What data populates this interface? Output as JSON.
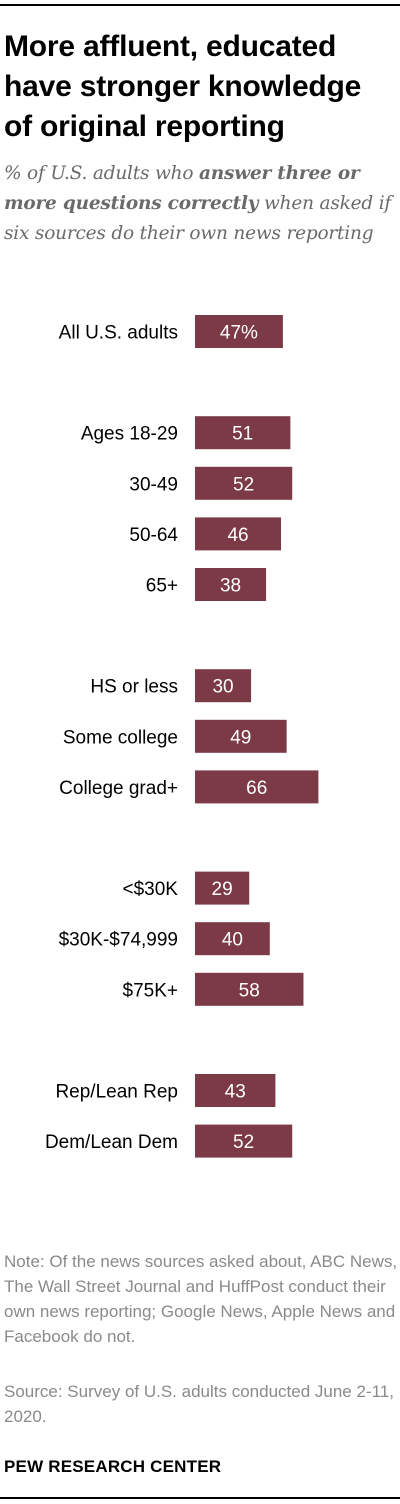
{
  "title": "More affluent, educated have stronger knowledge of original reporting",
  "subtitle": {
    "part1": "% of U.S. adults who ",
    "bold": "answer three or more questions correctly",
    "part2": " when asked if six sources do their own news reporting"
  },
  "note": "Note: Of the news sources asked about, ABC News, The Wall Street Journal and HuffPost conduct their own news reporting; Google News, Apple News and Facebook do not.",
  "source": "Source: Survey of U.S. adults conducted June 2-11, 2020.",
  "logo": "PEW RESEARCH CENTER",
  "colors": {
    "bar": "#7b3a45",
    "bar_label": "#ffffff"
  },
  "chart_data": {
    "type": "bar",
    "orientation": "horizontal",
    "title": "More affluent, educated have stronger knowledge of original reporting",
    "xlim": [
      0,
      100
    ],
    "grid": false,
    "groups": [
      {
        "items": [
          {
            "label": "All U.S. adults",
            "value": 47,
            "display": "47%"
          }
        ]
      },
      {
        "items": [
          {
            "label": "Ages 18-29",
            "value": 51,
            "display": "51"
          },
          {
            "label": "30-49",
            "value": 52,
            "display": "52"
          },
          {
            "label": "50-64",
            "value": 46,
            "display": "46"
          },
          {
            "label": "65+",
            "value": 38,
            "display": "38"
          }
        ]
      },
      {
        "items": [
          {
            "label": "HS or less",
            "value": 30,
            "display": "30"
          },
          {
            "label": "Some college",
            "value": 49,
            "display": "49"
          },
          {
            "label": "College grad+",
            "value": 66,
            "display": "66"
          }
        ]
      },
      {
        "items": [
          {
            "label": "<$30K",
            "value": 29,
            "display": "29"
          },
          {
            "label": "$30K-$74,999",
            "value": 40,
            "display": "40"
          },
          {
            "label": "$75K+",
            "value": 58,
            "display": "58"
          }
        ]
      },
      {
        "items": [
          {
            "label": "Rep/Lean Rep",
            "value": 43,
            "display": "43"
          },
          {
            "label": "Dem/Lean Dem",
            "value": 52,
            "display": "52"
          }
        ]
      }
    ]
  }
}
